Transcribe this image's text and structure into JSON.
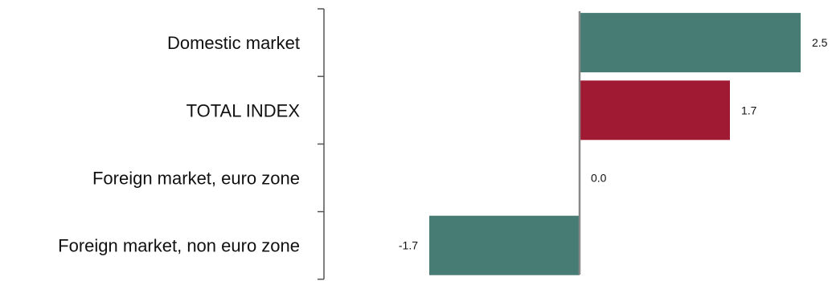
{
  "chart_data": {
    "type": "bar",
    "orientation": "horizontal",
    "categories": [
      "Domestic market",
      "TOTAL INDEX",
      "Foreign market, euro zone",
      "Foreign market, non euro zone"
    ],
    "values": [
      2.5,
      1.7,
      0.0,
      -1.7
    ],
    "data_labels": [
      "2.5",
      "1.7",
      "0.0",
      "-1.7"
    ],
    "bar_colors": [
      "#467C74",
      "#A01A33",
      "#467C74",
      "#467C74"
    ],
    "xlim": [
      -1.7,
      2.5
    ],
    "grid": false,
    "legend": "none",
    "title": "",
    "xlabel": "",
    "ylabel": ""
  }
}
